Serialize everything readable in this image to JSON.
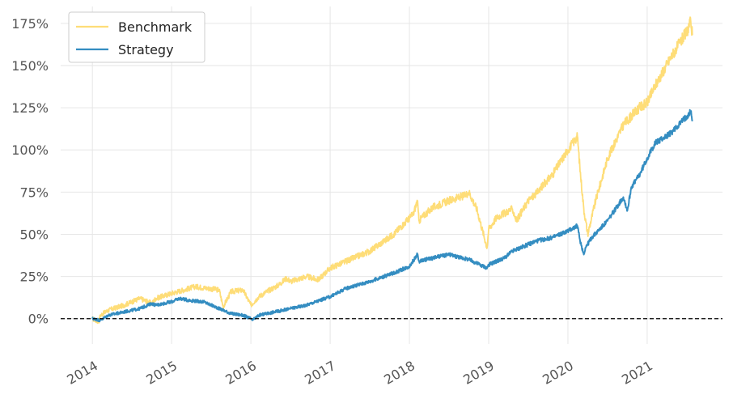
{
  "chart_data": {
    "type": "line",
    "title": "",
    "xlabel": "",
    "ylabel": "",
    "grid": true,
    "legend_position": "top-left",
    "xlim": [
      2013.6,
      2021.95
    ],
    "ylim": [
      -0.15,
      1.85
    ],
    "zero_line": true,
    "y_ticks": [
      0,
      0.25,
      0.5,
      0.75,
      1.0,
      1.25,
      1.5,
      1.75
    ],
    "y_tick_labels": [
      "0%",
      "25%",
      "50%",
      "75%",
      "100%",
      "125%",
      "150%",
      "175%"
    ],
    "x_ticks": [
      2014,
      2015,
      2016,
      2017,
      2018,
      2019,
      2020,
      2021
    ],
    "x_tick_labels": [
      "2014",
      "2015",
      "2016",
      "2017",
      "2018",
      "2019",
      "2020",
      "2021"
    ],
    "series": [
      {
        "name": "Benchmark",
        "color": "#fedd78",
        "x": [
          2014.0,
          2014.08,
          2014.1,
          2014.2,
          2014.4,
          2014.6,
          2014.75,
          2014.8,
          2015.0,
          2015.15,
          2015.3,
          2015.45,
          2015.6,
          2015.65,
          2015.75,
          2015.9,
          2016.0,
          2016.1,
          2016.2,
          2016.35,
          2016.45,
          2016.5,
          2016.7,
          2016.85,
          2017.0,
          2017.2,
          2017.5,
          2017.8,
          2018.05,
          2018.1,
          2018.12,
          2018.2,
          2018.3,
          2018.5,
          2018.7,
          2018.75,
          2018.85,
          2018.98,
          2019.0,
          2019.1,
          2019.3,
          2019.35,
          2019.5,
          2019.6,
          2019.7,
          2019.8,
          2020.0,
          2020.12,
          2020.15,
          2020.2,
          2020.25,
          2020.35,
          2020.5,
          2020.7,
          2020.8,
          2020.9,
          2021.0,
          2021.1,
          2021.3,
          2021.5,
          2021.55,
          2021.57
        ],
        "y": [
          0.0,
          -0.02,
          0.02,
          0.05,
          0.08,
          0.12,
          0.09,
          0.12,
          0.15,
          0.17,
          0.19,
          0.18,
          0.17,
          0.07,
          0.16,
          0.17,
          0.08,
          0.13,
          0.16,
          0.2,
          0.24,
          0.22,
          0.25,
          0.23,
          0.3,
          0.34,
          0.4,
          0.5,
          0.62,
          0.7,
          0.58,
          0.62,
          0.66,
          0.7,
          0.73,
          0.75,
          0.65,
          0.42,
          0.53,
          0.6,
          0.65,
          0.58,
          0.7,
          0.74,
          0.8,
          0.85,
          1.0,
          1.08,
          0.9,
          0.65,
          0.5,
          0.7,
          0.95,
          1.15,
          1.2,
          1.25,
          1.28,
          1.38,
          1.55,
          1.7,
          1.76,
          1.68
        ]
      },
      {
        "name": "Strategy",
        "color": "#348dc1",
        "x": [
          2014.0,
          2014.1,
          2014.2,
          2014.4,
          2014.6,
          2014.75,
          2014.8,
          2015.0,
          2015.1,
          2015.2,
          2015.4,
          2015.6,
          2015.65,
          2015.75,
          2015.9,
          2016.0,
          2016.02,
          2016.1,
          2016.3,
          2016.5,
          2016.7,
          2017.0,
          2017.2,
          2017.5,
          2017.8,
          2018.0,
          2018.1,
          2018.12,
          2018.2,
          2018.4,
          2018.5,
          2018.75,
          2018.98,
          2019.0,
          2019.2,
          2019.3,
          2019.5,
          2019.6,
          2019.8,
          2020.0,
          2020.12,
          2020.15,
          2020.2,
          2020.22,
          2020.3,
          2020.5,
          2020.7,
          2020.75,
          2020.8,
          2020.9,
          2021.0,
          2021.1,
          2021.3,
          2021.5,
          2021.55,
          2021.57
        ],
        "y": [
          0.0,
          -0.01,
          0.02,
          0.04,
          0.06,
          0.09,
          0.08,
          0.1,
          0.12,
          0.11,
          0.1,
          0.06,
          0.05,
          0.03,
          0.02,
          0.0,
          -0.01,
          0.02,
          0.04,
          0.06,
          0.08,
          0.13,
          0.18,
          0.22,
          0.27,
          0.31,
          0.38,
          0.34,
          0.35,
          0.37,
          0.38,
          0.35,
          0.3,
          0.32,
          0.36,
          0.4,
          0.44,
          0.46,
          0.48,
          0.52,
          0.55,
          0.47,
          0.38,
          0.42,
          0.48,
          0.58,
          0.72,
          0.64,
          0.78,
          0.85,
          0.95,
          1.04,
          1.1,
          1.2,
          1.23,
          1.17
        ]
      }
    ]
  }
}
